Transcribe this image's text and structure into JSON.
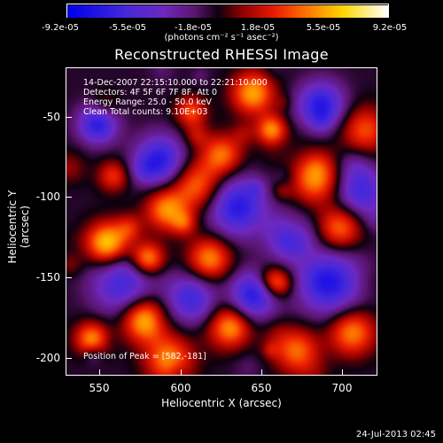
{
  "colorbar": {
    "tick_labels": [
      "-9.2e-05",
      "-5.5e-05",
      "-1.8e-05",
      "1.8e-05",
      "5.5e-05",
      "9.2e-05"
    ],
    "units_label": "(photons cm⁻² s⁻¹ asec⁻²)",
    "range": [
      -9.2e-05,
      9.2e-05
    ],
    "colormap": "blue-purple-black-red-orange-yellow-white"
  },
  "plot": {
    "title": "Reconstructed RHESSI Image",
    "info_lines": [
      "14-Dec-2007 22:15:10.000 to 22:21:10.000",
      "Detectors: 4F 5F 6F 7F 8F, Att 0",
      "Energy Range: 25.0 - 50.0 keV",
      "Clean     Total counts: 9.10E+03"
    ],
    "peak_label": "Position of Peak = [582,-181]",
    "x_axis": {
      "label": "Heliocentric X (arcsec)",
      "tick_labels": [
        "550",
        "600",
        "650",
        "700"
      ],
      "ticks": [
        550,
        600,
        650,
        700
      ],
      "range": [
        530,
        722
      ]
    },
    "y_axis": {
      "label": "Heliocentric Y (arcsec)",
      "tick_labels": [
        "-50",
        "-100",
        "-150",
        "-200"
      ],
      "ticks": [
        -50,
        -100,
        -150,
        -200
      ],
      "range": [
        -214,
        -24
      ]
    }
  },
  "datestamp": "24-Jul-2013 02:45"
}
